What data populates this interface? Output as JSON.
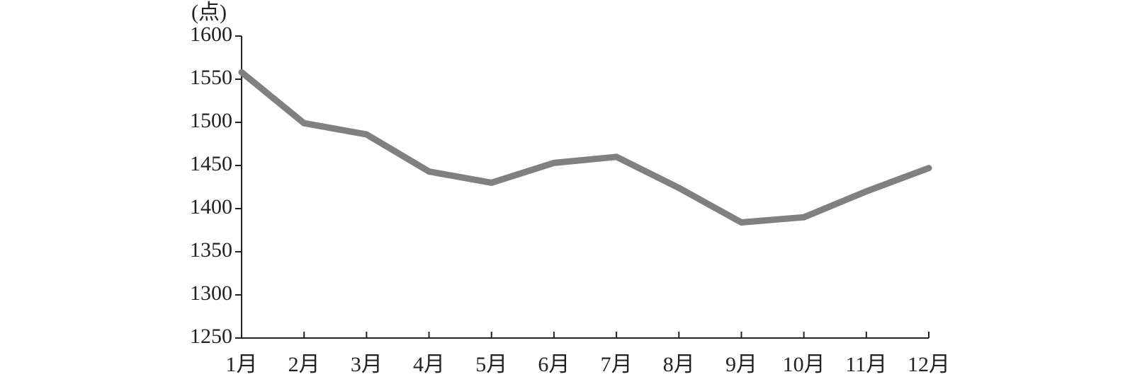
{
  "chart_data": {
    "type": "line",
    "y_label": "(点)",
    "categories": [
      "1月",
      "2月",
      "3月",
      "4月",
      "5月",
      "6月",
      "7月",
      "8月",
      "9月",
      "10月",
      "11月",
      "12月"
    ],
    "series": [
      {
        "name": null,
        "color": "#808080",
        "values": [
          1558,
          1499,
          1486,
          1443,
          1430,
          1453,
          1460,
          1424,
          1384,
          1390,
          1420,
          1447
        ]
      }
    ],
    "ylim": [
      1250,
      1600
    ],
    "yticks": [
      1250,
      1300,
      1350,
      1400,
      1450,
      1500,
      1550,
      1600
    ],
    "grid": false
  }
}
